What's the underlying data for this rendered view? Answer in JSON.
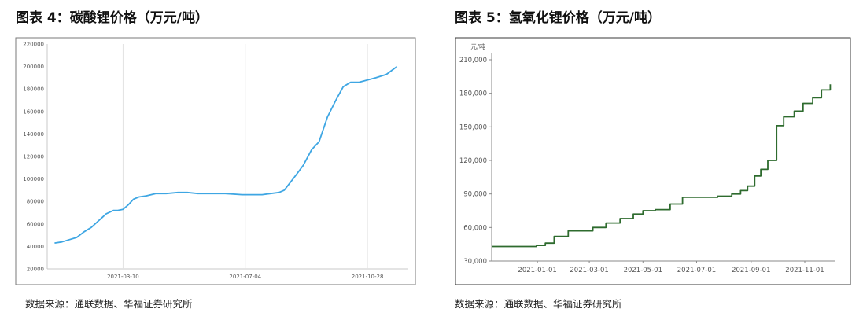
{
  "chart_data": [
    {
      "type": "line",
      "title": "图表 4：碳酸锂价格（万元/吨）",
      "source": "数据来源：通联数据、华福证券研究所",
      "ylim": [
        20000,
        220000
      ],
      "yticks": [
        "20000",
        "40000",
        "60000",
        "80000",
        "100000",
        "120000",
        "140000",
        "160000",
        "180000",
        "200000",
        "220000"
      ],
      "xticks": [
        "2021-03-10",
        "2021-07-04",
        "2021-10-28"
      ],
      "grid": "vertical",
      "colors": {
        "line": "#3ea6e3"
      },
      "series": [
        {
          "x": [
            "2021-01-04",
            "2021-01-11",
            "2021-01-18",
            "2021-01-25",
            "2021-02-01",
            "2021-02-08",
            "2021-02-15",
            "2021-02-22",
            "2021-03-01",
            "2021-03-05",
            "2021-03-10",
            "2021-03-15",
            "2021-03-20",
            "2021-03-25",
            "2021-04-01",
            "2021-04-10",
            "2021-04-20",
            "2021-05-01",
            "2021-05-10",
            "2021-05-20",
            "2021-06-01",
            "2021-06-15",
            "2021-07-01",
            "2021-07-10",
            "2021-07-20",
            "2021-07-28",
            "2021-08-05",
            "2021-08-10",
            "2021-08-15",
            "2021-08-20",
            "2021-08-28",
            "2021-09-05",
            "2021-09-12",
            "2021-09-20",
            "2021-09-28",
            "2021-10-05",
            "2021-10-12",
            "2021-10-20",
            "2021-10-28",
            "2021-11-05",
            "2021-11-15",
            "2021-11-25"
          ],
          "y": [
            43000,
            44000,
            46000,
            48000,
            53000,
            57000,
            63000,
            69000,
            72000,
            72000,
            73000,
            77000,
            82000,
            84000,
            85000,
            87000,
            87000,
            88000,
            88000,
            87000,
            87000,
            87000,
            86000,
            86000,
            86000,
            87000,
            88000,
            90000,
            96000,
            102000,
            112000,
            126000,
            133000,
            155000,
            170000,
            182000,
            186000,
            186000,
            188000,
            190000,
            193000,
            200000
          ]
        }
      ]
    },
    {
      "type": "line",
      "title": "图表 5：氢氧化锂价格（万元/吨）",
      "source": "数据来源：通联数据、华福证券研究所",
      "yunit": "元/吨",
      "ylim": [
        30000,
        210000
      ],
      "yticks": [
        "30,000",
        "60,000",
        "90,000",
        "120,000",
        "150,000",
        "180,000",
        "210,000"
      ],
      "xticks": [
        "2021-01-01",
        "2021-03-01",
        "2021-05-01",
        "2021-07-01",
        "2021-09-01",
        "2021-11-01"
      ],
      "grid": "none",
      "colors": {
        "line": "#2e6b2e"
      },
      "series": [
        {
          "x": [
            "2020-11-10",
            "2020-12-10",
            "2020-12-31",
            "2021-01-10",
            "2021-01-20",
            "2021-02-05",
            "2021-02-25",
            "2021-03-05",
            "2021-03-20",
            "2021-04-05",
            "2021-04-20",
            "2021-05-01",
            "2021-05-15",
            "2021-06-01",
            "2021-06-15",
            "2021-07-01",
            "2021-07-15",
            "2021-07-25",
            "2021-08-10",
            "2021-08-20",
            "2021-08-28",
            "2021-09-05",
            "2021-09-12",
            "2021-09-20",
            "2021-09-30",
            "2021-10-08",
            "2021-10-20",
            "2021-10-30",
            "2021-11-10",
            "2021-11-20",
            "2021-11-30"
          ],
          "y": [
            43000,
            43000,
            44000,
            46000,
            52000,
            57000,
            57000,
            60000,
            64000,
            68000,
            72000,
            75000,
            76000,
            81000,
            87000,
            87000,
            87000,
            88000,
            90000,
            93000,
            97000,
            106000,
            112000,
            120000,
            151000,
            159000,
            164000,
            171000,
            176000,
            183000,
            188000
          ]
        }
      ]
    }
  ]
}
